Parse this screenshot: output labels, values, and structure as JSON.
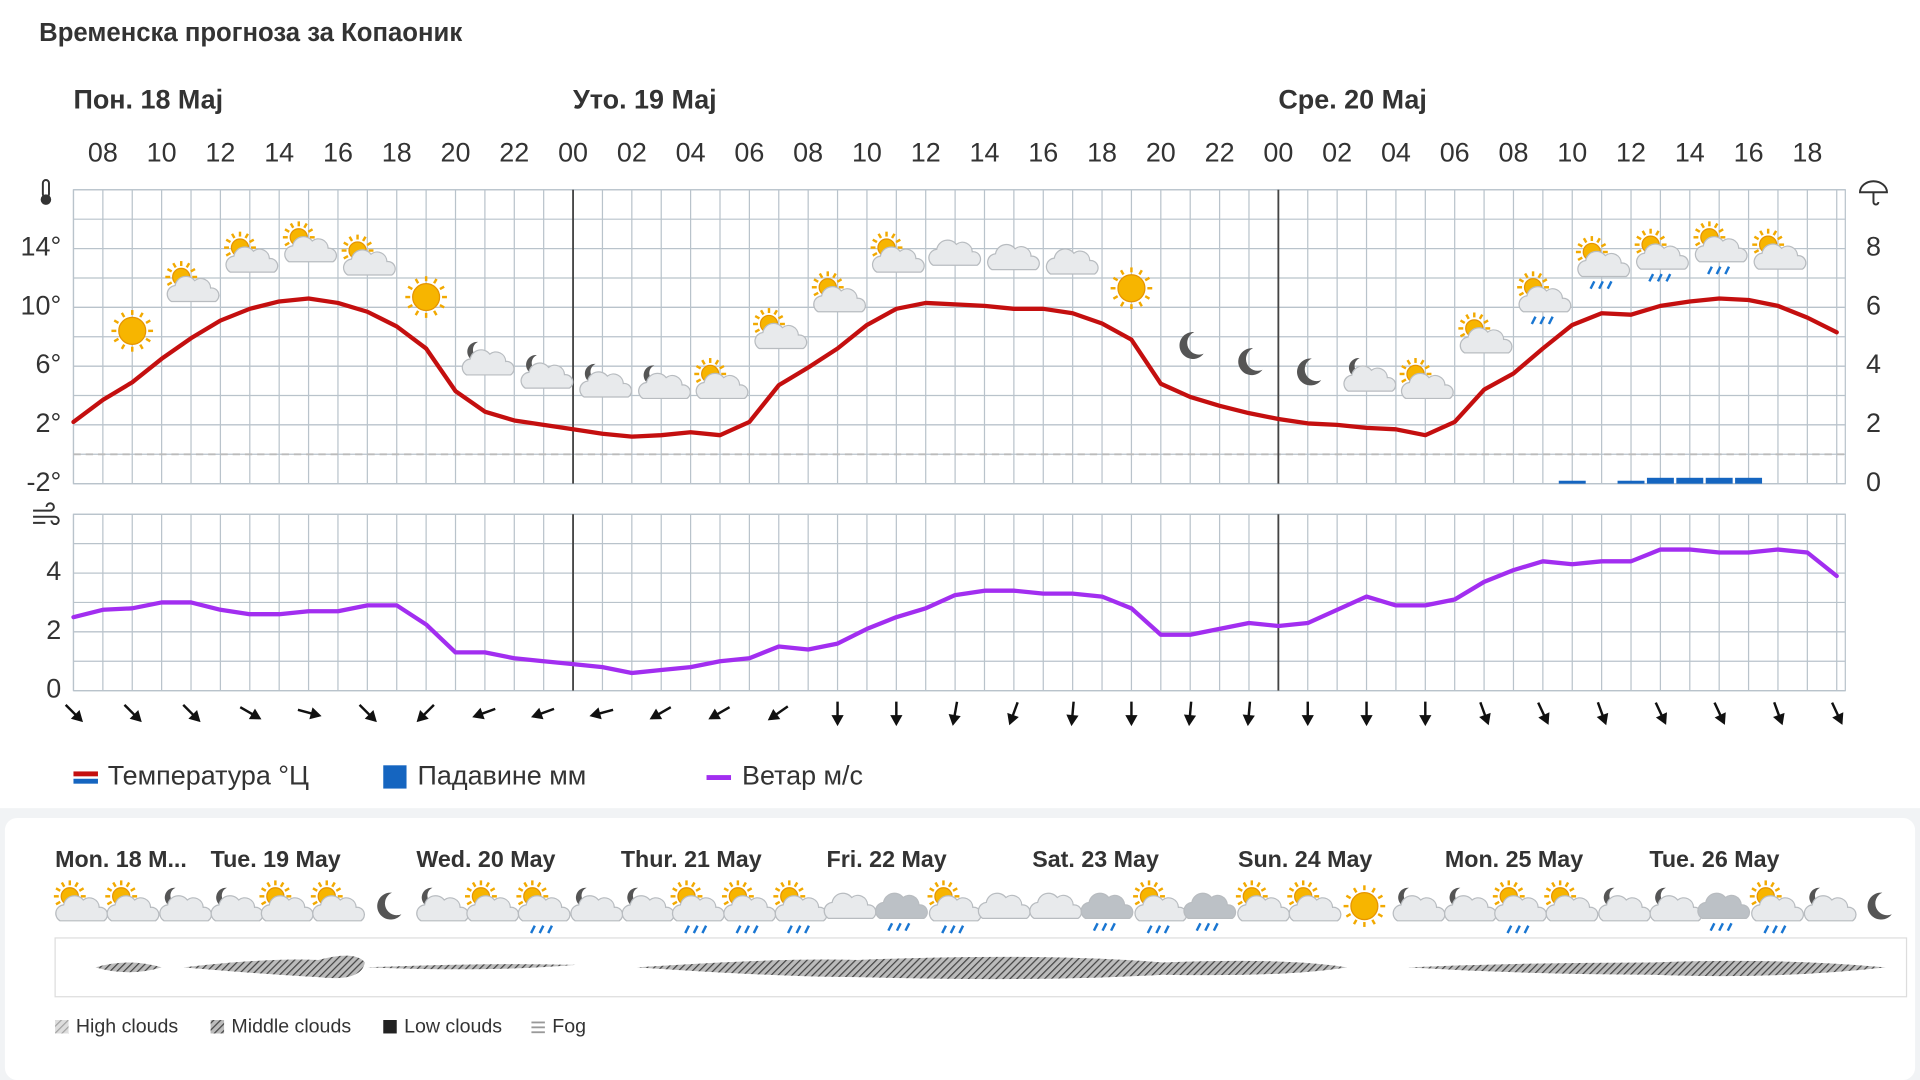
{
  "title": "Временска прогноза за Копаоник",
  "chart_data": [
    {
      "type": "line",
      "days": [
        "Пон. 18 Мај",
        "Уто. 19 Мај",
        "Сре. 20 Мај"
      ],
      "categories": [
        null,
        "08",
        null,
        "10",
        null,
        "12",
        null,
        "14",
        null,
        "16",
        null,
        "18",
        null,
        "20",
        null,
        "22",
        null,
        "00",
        null,
        "02",
        null,
        "04",
        null,
        "06",
        null,
        "08",
        null,
        "10",
        null,
        "12",
        null,
        "14",
        null,
        "16",
        null,
        "18",
        null,
        "20",
        null,
        "22",
        null,
        "00",
        null,
        "02",
        null,
        "04",
        null,
        "06",
        null,
        "08",
        null,
        "10",
        null,
        "12",
        null,
        "14",
        null,
        "16",
        null,
        "18",
        null
      ],
      "ylim": [
        -2,
        18
      ],
      "yticks": [
        {
          "value": -2,
          "label": "-2°"
        },
        {
          "value": 2,
          "label": "2°"
        },
        {
          "value": 6,
          "label": "6°"
        },
        {
          "value": 10,
          "label": "10°"
        },
        {
          "value": 14,
          "label": "14°"
        }
      ],
      "y2lim": [
        0,
        10
      ],
      "y2ticks": [
        0,
        2,
        4,
        6,
        8
      ],
      "reference_line": 0,
      "grid": true,
      "series": [
        {
          "name": "Температура °Ц",
          "color": "#c40f0f",
          "values": [
            2.2,
            3.7,
            4.9,
            6.5,
            7.9,
            9.1,
            9.9,
            10.4,
            10.6,
            10.3,
            9.7,
            8.7,
            7.2,
            4.3,
            2.9,
            2.3,
            2.0,
            1.7,
            1.4,
            1.2,
            1.3,
            1.5,
            1.3,
            2.2,
            4.7,
            5.9,
            7.2,
            8.8,
            9.9,
            10.3,
            10.2,
            10.1,
            9.9,
            9.9,
            9.6,
            8.9,
            7.8,
            4.8,
            3.9,
            3.3,
            2.8,
            2.4,
            2.1,
            2.0,
            1.8,
            1.7,
            1.3,
            2.2,
            4.4,
            5.5,
            7.2,
            8.8,
            9.6,
            9.5,
            10.1,
            10.4,
            10.6,
            10.5,
            10.1,
            9.3,
            8.3
          ]
        },
        {
          "name": "Падавине мм",
          "type": "bar",
          "axis": "y2",
          "color": "#1565c0",
          "values": [
            0,
            0,
            0,
            0,
            0,
            0,
            0,
            0,
            0,
            0,
            0,
            0,
            0,
            0,
            0,
            0,
            0,
            0,
            0,
            0,
            0,
            0,
            0,
            0,
            0,
            0,
            0,
            0,
            0,
            0,
            0,
            0,
            0,
            0,
            0,
            0,
            0,
            0,
            0,
            0,
            0,
            0,
            0,
            0,
            0,
            0,
            0,
            0,
            0,
            0,
            0,
            0.1,
            0,
            0.1,
            0.2,
            0.2,
            0.2,
            0.2,
            0,
            0,
            0
          ]
        }
      ]
    },
    {
      "type": "line",
      "ylim": [
        0,
        6
      ],
      "yticks": [
        0,
        2,
        4
      ],
      "grid": true,
      "series": [
        {
          "name": "Ветар м/с",
          "color": "#a22ef0",
          "values": [
            2.5,
            2.75,
            2.8,
            3.0,
            3.0,
            2.75,
            2.6,
            2.6,
            2.7,
            2.7,
            2.9,
            2.9,
            2.25,
            1.3,
            1.3,
            1.1,
            1.0,
            0.9,
            0.8,
            0.6,
            0.7,
            0.8,
            1.0,
            1.1,
            1.5,
            1.4,
            1.6,
            2.1,
            2.5,
            2.8,
            3.25,
            3.4,
            3.4,
            3.3,
            3.3,
            3.2,
            2.8,
            1.9,
            1.9,
            2.1,
            2.3,
            2.2,
            2.3,
            2.75,
            3.2,
            2.9,
            2.9,
            3.1,
            3.7,
            4.1,
            4.4,
            4.3,
            4.4,
            4.4,
            4.8,
            4.8,
            4.7,
            4.7,
            4.8,
            4.7,
            3.9
          ]
        }
      ],
      "wind_direction": [
        315,
        315,
        315,
        300,
        285,
        315,
        45,
        70,
        70,
        75,
        60,
        60,
        55,
        0,
        0,
        10,
        20,
        5,
        0,
        5,
        5,
        0,
        0,
        0,
        340,
        335,
        340,
        335,
        335,
        340,
        335
      ]
    }
  ],
  "overview": {
    "days": [
      "Mon. 18 M...",
      "Tue. 19 May",
      "Wed. 20 May",
      "Thur. 21 May",
      "Fri. 22 May",
      "Sat. 23 May",
      "Sun. 24 May",
      "Mon. 25 May",
      "Tue. 26 May"
    ],
    "legend": [
      "High clouds",
      "Middle clouds",
      "Low clouds",
      "Fog"
    ]
  }
}
